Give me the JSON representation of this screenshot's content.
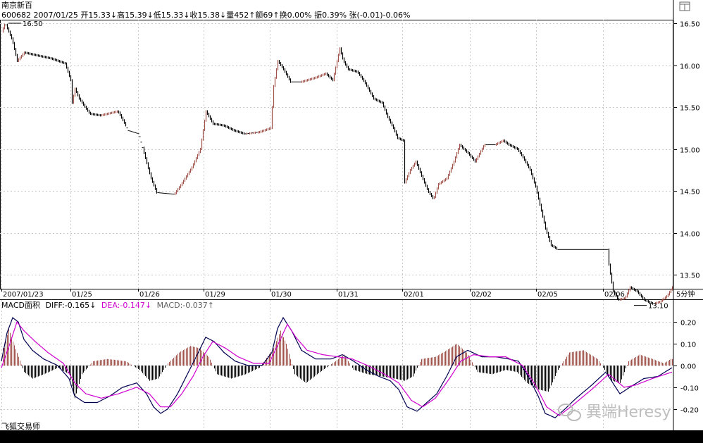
{
  "header": {
    "title": "南京新百",
    "info_line": "600682 2007/01/25 开15.33↓高15.39↓低15.33↓收15.38↓量452↑额69↑换0.00% 振0.39% 张(-0.01)-0.06%"
  },
  "corner_icon": "window-restore-icon",
  "footer": {
    "brand": "飞狐交易师",
    "watermark": "異端Heresy",
    "period": "5分钟"
  },
  "colors": {
    "up": "#a0524a",
    "down": "#000000",
    "grid": "#c8c8c8",
    "diff": "#000050",
    "dea": "#d000d0",
    "macd_label": "#404040"
  },
  "chart_data": [
    {
      "type": "candlestick",
      "title": "",
      "x_labels": [
        "2007/01/23",
        "01/25",
        "01/26",
        "01/29",
        "01/30",
        "01/31",
        "02/01",
        "02/02",
        "02/05",
        "02/06"
      ],
      "y_ticks": [
        16.5,
        16.0,
        15.5,
        15.0,
        14.5,
        14.0,
        13.5
      ],
      "ylim": [
        13.05,
        16.62
      ],
      "annotations": [
        {
          "label": "16.50",
          "value": 16.5
        },
        {
          "label": "13.10",
          "value": 13.1
        }
      ],
      "close_path": [
        [
          0,
          16.4
        ],
        [
          5,
          16.5
        ],
        [
          15,
          16.3
        ],
        [
          22,
          16.05
        ],
        [
          32,
          16.15
        ],
        [
          48,
          16.12
        ],
        [
          70,
          16.08
        ],
        [
          90,
          16.02
        ],
        [
          98,
          15.82
        ],
        [
          100,
          15.55
        ],
        [
          104,
          15.72
        ],
        [
          110,
          15.6
        ],
        [
          125,
          15.42
        ],
        [
          140,
          15.4
        ],
        [
          165,
          15.45
        ],
        [
          180,
          15.22
        ],
        [
          195,
          15.18
        ],
        [
          202,
          14.95
        ],
        [
          212,
          14.65
        ],
        [
          220,
          14.48
        ],
        [
          245,
          14.46
        ],
        [
          255,
          14.58
        ],
        [
          270,
          14.78
        ],
        [
          282,
          15.0
        ],
        [
          290,
          15.45
        ],
        [
          300,
          15.3
        ],
        [
          315,
          15.28
        ],
        [
          330,
          15.22
        ],
        [
          345,
          15.18
        ],
        [
          365,
          15.2
        ],
        [
          382,
          15.25
        ],
        [
          386,
          15.75
        ],
        [
          392,
          16.05
        ],
        [
          400,
          15.95
        ],
        [
          410,
          15.8
        ],
        [
          425,
          15.8
        ],
        [
          445,
          15.85
        ],
        [
          460,
          15.9
        ],
        [
          470,
          15.82
        ],
        [
          480,
          16.2
        ],
        [
          485,
          16.05
        ],
        [
          492,
          15.95
        ],
        [
          505,
          15.92
        ],
        [
          515,
          15.8
        ],
        [
          528,
          15.6
        ],
        [
          540,
          15.55
        ],
        [
          548,
          15.38
        ],
        [
          556,
          15.25
        ],
        [
          562,
          15.13
        ],
        [
          570,
          15.1
        ],
        [
          572,
          14.6
        ],
        [
          580,
          14.75
        ],
        [
          588,
          14.85
        ],
        [
          595,
          14.7
        ],
        [
          605,
          14.5
        ],
        [
          613,
          14.4
        ],
        [
          620,
          14.58
        ],
        [
          632,
          14.65
        ],
        [
          642,
          14.85
        ],
        [
          650,
          15.05
        ],
        [
          662,
          14.95
        ],
        [
          672,
          14.85
        ],
        [
          685,
          15.05
        ],
        [
          700,
          15.05
        ],
        [
          712,
          15.1
        ],
        [
          720,
          15.05
        ],
        [
          732,
          15.0
        ],
        [
          740,
          14.9
        ],
        [
          750,
          14.75
        ],
        [
          758,
          14.55
        ],
        [
          765,
          14.3
        ],
        [
          772,
          14.05
        ],
        [
          780,
          13.85
        ],
        [
          790,
          13.8
        ],
        [
          860,
          13.8
        ],
        [
          862,
          13.62
        ],
        [
          868,
          13.3
        ],
        [
          875,
          13.2
        ],
        [
          885,
          13.22
        ],
        [
          892,
          13.35
        ],
        [
          902,
          13.3
        ],
        [
          912,
          13.2
        ],
        [
          925,
          13.15
        ],
        [
          935,
          13.18
        ],
        [
          945,
          13.25
        ],
        [
          952,
          13.35
        ]
      ]
    },
    {
      "type": "line",
      "title": "MACD面积",
      "indicators": [
        {
          "name": "DIFF",
          "value": "-0.165",
          "arrow": "↓"
        },
        {
          "name": "DEA",
          "value": "-0.147",
          "arrow": "↓"
        },
        {
          "name": "MACD",
          "value": "-0.037",
          "arrow": "↑"
        }
      ],
      "y_ticks": [
        "0.20",
        "0.10",
        "0.00",
        "-0.10",
        "-0.20"
      ],
      "y_values": [
        0.2,
        0.1,
        0.0,
        -0.1,
        -0.2
      ],
      "ylim": [
        -0.28,
        0.28
      ],
      "series": [
        {
          "name": "DIFF",
          "points": [
            [
              0,
              0.02
            ],
            [
              8,
              0.15
            ],
            [
              16,
              0.22
            ],
            [
              24,
              0.2
            ],
            [
              32,
              0.12
            ],
            [
              44,
              0.07
            ],
            [
              60,
              0.03
            ],
            [
              80,
              0.0
            ],
            [
              96,
              -0.06
            ],
            [
              104,
              -0.14
            ],
            [
              118,
              -0.17
            ],
            [
              136,
              -0.17
            ],
            [
              154,
              -0.14
            ],
            [
              172,
              -0.1
            ],
            [
              192,
              -0.08
            ],
            [
              206,
              -0.13
            ],
            [
              216,
              -0.19
            ],
            [
              226,
              -0.22
            ],
            [
              236,
              -0.2
            ],
            [
              250,
              -0.13
            ],
            [
              264,
              -0.04
            ],
            [
              278,
              0.05
            ],
            [
              290,
              0.13
            ],
            [
              302,
              0.11
            ],
            [
              316,
              0.06
            ],
            [
              332,
              0.02
            ],
            [
              350,
              0.0
            ],
            [
              370,
              0.0
            ],
            [
              384,
              0.06
            ],
            [
              392,
              0.17
            ],
            [
              400,
              0.22
            ],
            [
              412,
              0.16
            ],
            [
              426,
              0.07
            ],
            [
              446,
              0.03
            ],
            [
              468,
              0.03
            ],
            [
              484,
              0.05
            ],
            [
              500,
              0.02
            ],
            [
              518,
              -0.02
            ],
            [
              536,
              -0.05
            ],
            [
              552,
              -0.07
            ],
            [
              564,
              -0.11
            ],
            [
              576,
              -0.19
            ],
            [
              590,
              -0.21
            ],
            [
              604,
              -0.17
            ],
            [
              618,
              -0.13
            ],
            [
              632,
              -0.05
            ],
            [
              646,
              0.04
            ],
            [
              662,
              0.07
            ],
            [
              682,
              0.04
            ],
            [
              702,
              0.04
            ],
            [
              720,
              0.03
            ],
            [
              734,
              0.02
            ],
            [
              748,
              -0.05
            ],
            [
              762,
              -0.14
            ],
            [
              772,
              -0.22
            ],
            [
              786,
              -0.24
            ],
            [
              800,
              -0.2
            ],
            [
              816,
              -0.15
            ],
            [
              838,
              -0.09
            ],
            [
              858,
              -0.03
            ],
            [
              866,
              -0.07
            ],
            [
              878,
              -0.13
            ],
            [
              892,
              -0.1
            ],
            [
              912,
              -0.06
            ],
            [
              932,
              -0.05
            ],
            [
              952,
              -0.01
            ]
          ]
        },
        {
          "name": "DEA",
          "points": [
            [
              0,
              -0.01
            ],
            [
              12,
              0.1
            ],
            [
              22,
              0.2
            ],
            [
              32,
              0.16
            ],
            [
              48,
              0.11
            ],
            [
              66,
              0.06
            ],
            [
              88,
              0.01
            ],
            [
              104,
              -0.08
            ],
            [
              120,
              -0.13
            ],
            [
              142,
              -0.15
            ],
            [
              166,
              -0.13
            ],
            [
              192,
              -0.1
            ],
            [
              210,
              -0.13
            ],
            [
              226,
              -0.19
            ],
            [
              240,
              -0.19
            ],
            [
              256,
              -0.13
            ],
            [
              272,
              -0.05
            ],
            [
              286,
              0.04
            ],
            [
              300,
              0.11
            ],
            [
              318,
              0.08
            ],
            [
              336,
              0.04
            ],
            [
              358,
              0.01
            ],
            [
              380,
              0.01
            ],
            [
              396,
              0.12
            ],
            [
              406,
              0.19
            ],
            [
              418,
              0.13
            ],
            [
              434,
              0.07
            ],
            [
              456,
              0.05
            ],
            [
              478,
              0.04
            ],
            [
              498,
              0.03
            ],
            [
              520,
              0.0
            ],
            [
              544,
              -0.04
            ],
            [
              564,
              -0.08
            ],
            [
              582,
              -0.16
            ],
            [
              598,
              -0.19
            ],
            [
              616,
              -0.15
            ],
            [
              636,
              -0.06
            ],
            [
              652,
              0.02
            ],
            [
              670,
              0.05
            ],
            [
              694,
              0.04
            ],
            [
              716,
              0.04
            ],
            [
              740,
              0.0
            ],
            [
              758,
              -0.09
            ],
            [
              774,
              -0.19
            ],
            [
              792,
              -0.23
            ],
            [
              812,
              -0.18
            ],
            [
              838,
              -0.11
            ],
            [
              862,
              -0.04
            ],
            [
              884,
              -0.1
            ],
            [
              900,
              -0.09
            ],
            [
              924,
              -0.06
            ],
            [
              952,
              -0.03
            ]
          ]
        }
      ],
      "histogram": [
        [
          4,
          0.08
        ],
        [
          10,
          0.17
        ],
        [
          16,
          0.11
        ],
        [
          24,
          0.04
        ],
        [
          32,
          -0.03
        ],
        [
          44,
          -0.06
        ],
        [
          60,
          -0.04
        ],
        [
          80,
          -0.01
        ],
        [
          96,
          -0.04
        ],
        [
          104,
          -0.15
        ],
        [
          114,
          -0.04
        ],
        [
          130,
          0.02
        ],
        [
          150,
          0.03
        ],
        [
          176,
          0.02
        ],
        [
          196,
          -0.02
        ],
        [
          210,
          -0.07
        ],
        [
          222,
          -0.06
        ],
        [
          236,
          0.01
        ],
        [
          252,
          0.06
        ],
        [
          268,
          0.09
        ],
        [
          280,
          0.08
        ],
        [
          294,
          0.04
        ],
        [
          306,
          -0.04
        ],
        [
          326,
          -0.06
        ],
        [
          346,
          -0.04
        ],
        [
          366,
          -0.01
        ],
        [
          386,
          0.08
        ],
        [
          396,
          0.16
        ],
        [
          404,
          0.1
        ],
        [
          416,
          -0.04
        ],
        [
          432,
          -0.08
        ],
        [
          452,
          -0.03
        ],
        [
          474,
          0.02
        ],
        [
          486,
          0.05
        ],
        [
          500,
          -0.02
        ],
        [
          520,
          -0.04
        ],
        [
          540,
          -0.05
        ],
        [
          558,
          -0.06
        ],
        [
          572,
          -0.07
        ],
        [
          584,
          -0.05
        ],
        [
          596,
          0.03
        ],
        [
          616,
          0.04
        ],
        [
          632,
          0.07
        ],
        [
          646,
          0.1
        ],
        [
          660,
          0.06
        ],
        [
          676,
          -0.03
        ],
        [
          696,
          -0.04
        ],
        [
          716,
          -0.02
        ],
        [
          732,
          -0.03
        ],
        [
          746,
          -0.08
        ],
        [
          762,
          -0.11
        ],
        [
          776,
          -0.12
        ],
        [
          790,
          -0.02
        ],
        [
          806,
          0.06
        ],
        [
          826,
          0.07
        ],
        [
          846,
          0.03
        ],
        [
          858,
          -0.03
        ],
        [
          866,
          -0.07
        ],
        [
          878,
          -0.08
        ],
        [
          890,
          0.02
        ],
        [
          906,
          0.05
        ],
        [
          924,
          0.03
        ],
        [
          940,
          0.01
        ],
        [
          950,
          0.03
        ]
      ]
    }
  ]
}
